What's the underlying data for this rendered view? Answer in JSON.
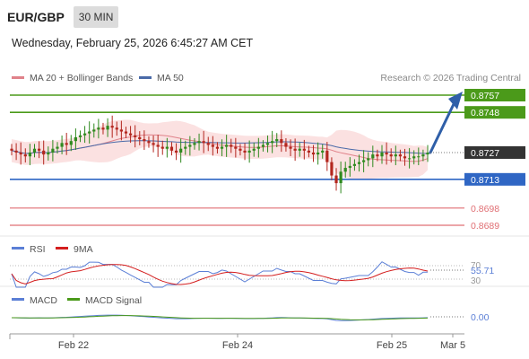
{
  "header": {
    "pair": "EUR/GBP",
    "timeframe": "30 MIN",
    "datetime": "Wednesday, February 25, 2026 6:45:27 AM CET"
  },
  "legend": {
    "bb_label": "MA 20 + Bollinger Bands",
    "ma50_label": "MA 50",
    "credit": "Research © 2026 Trading Central"
  },
  "colors": {
    "up": "#2f8a1f",
    "down": "#b3261e",
    "ma20": "#e0828a",
    "ma50": "#4a6aa8",
    "target_green": "#4b9a1a",
    "pivot_blue": "#2f66c4",
    "support_red": "#e06f74",
    "current": "#333333",
    "rsi": "#5b7fd6",
    "rsi_ma": "#d41e1e",
    "macd": "#5b7fd6",
    "macd_signal": "#4b9a1a"
  },
  "levels": [
    {
      "value": "0.8757",
      "type": "target"
    },
    {
      "value": "0.8748",
      "type": "target"
    },
    {
      "value": "0.8727",
      "type": "current"
    },
    {
      "value": "0.8713",
      "type": "pivot"
    },
    {
      "value": "0.8698",
      "type": "support"
    },
    {
      "value": "0.8689",
      "type": "support"
    }
  ],
  "rsi": {
    "label": "RSI",
    "ma_label": "9MA",
    "value": "55.71",
    "levels": [
      "70",
      "30"
    ]
  },
  "macd": {
    "label": "MACD",
    "signal_label": "MACD Signal",
    "value": "0.00"
  },
  "x_ticks": [
    "Feb 22",
    "Feb 24",
    "Feb 25",
    "Mar 5"
  ],
  "chart_data": {
    "type": "candlestick",
    "pair": "EUR/GBP",
    "interval": "30 MIN",
    "ylim": [
      0.8684,
      0.8762
    ],
    "x_tick_labels": [
      "Feb 22",
      "Feb 24",
      "Feb 25",
      "Mar 5"
    ],
    "close_series": [
      0.8728,
      0.8727,
      0.8726,
      0.8725,
      0.8727,
      0.8729,
      0.8728,
      0.8726,
      0.8727,
      0.8729,
      0.873,
      0.8732,
      0.8731,
      0.8733,
      0.8735,
      0.8736,
      0.8737,
      0.8738,
      0.8739,
      0.874,
      0.8739,
      0.8741,
      0.874,
      0.8739,
      0.8738,
      0.8737,
      0.8736,
      0.8735,
      0.8734,
      0.8733,
      0.8732,
      0.8731,
      0.873,
      0.8729,
      0.873,
      0.8728,
      0.8727,
      0.8729,
      0.873,
      0.8731,
      0.8732,
      0.8733,
      0.8732,
      0.8731,
      0.873,
      0.8729,
      0.873,
      0.8731,
      0.873,
      0.8729,
      0.8728,
      0.8727,
      0.8728,
      0.8729,
      0.873,
      0.8731,
      0.8732,
      0.8733,
      0.8734,
      0.8732,
      0.873,
      0.8729,
      0.8728,
      0.8729,
      0.8728,
      0.8727,
      0.8726,
      0.8727,
      0.8728,
      0.8722,
      0.8715,
      0.8711,
      0.8717,
      0.8719,
      0.872,
      0.8721,
      0.8722,
      0.8723,
      0.8724,
      0.8726,
      0.8725,
      0.8727,
      0.8726,
      0.8725,
      0.8726,
      0.8725,
      0.8724,
      0.8724,
      0.8725,
      0.8725,
      0.8726,
      0.8727
    ],
    "projection": {
      "from": 0.8727,
      "to": 0.8757
    },
    "rsi_last": 55.71,
    "macd_last": 0.0
  }
}
